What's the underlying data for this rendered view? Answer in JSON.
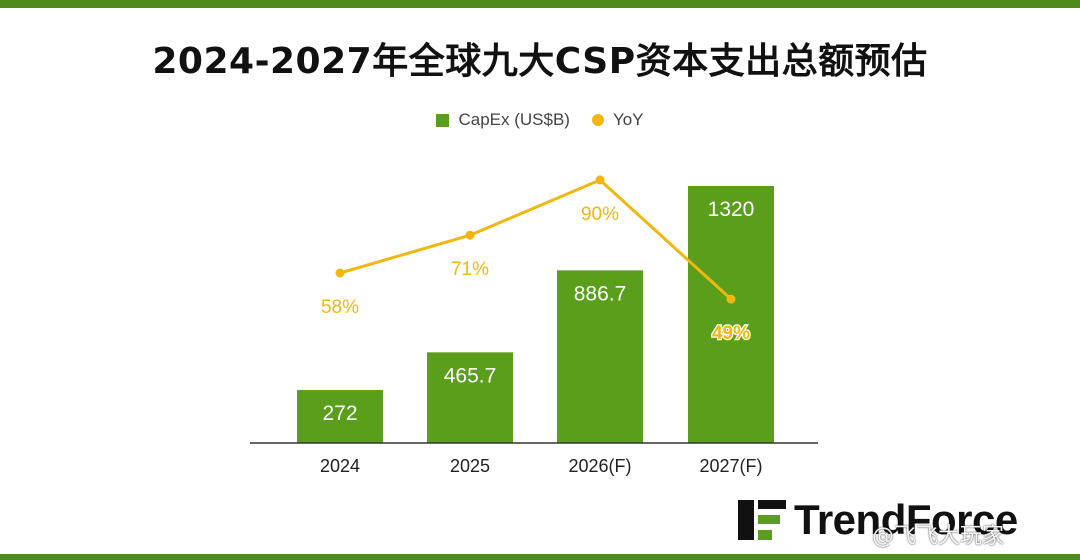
{
  "title": "2024-2027年全球九大CSP资本支出总额预估",
  "watermark_text": "@飞飞大玩家",
  "colors": {
    "bar": "#5a9e1b",
    "line": "#f2b70f",
    "accent": "#4f8a1c"
  },
  "chart_data": {
    "type": "bar",
    "categories": [
      "2024",
      "2025",
      "2026(F)",
      "2027(F)"
    ],
    "series": [
      {
        "name": "CapEx (US$B)",
        "type": "bar",
        "values": [
          272,
          465.7,
          886.7,
          1320
        ],
        "labels": [
          "272",
          "465.7",
          "886.7",
          "1320"
        ]
      },
      {
        "name": "YoY",
        "type": "line",
        "values": [
          58,
          71,
          90,
          49
        ],
        "labels": [
          "58%",
          "71%",
          "90%",
          "49%"
        ]
      }
    ],
    "legend_position": "top-center",
    "grid": false
  }
}
